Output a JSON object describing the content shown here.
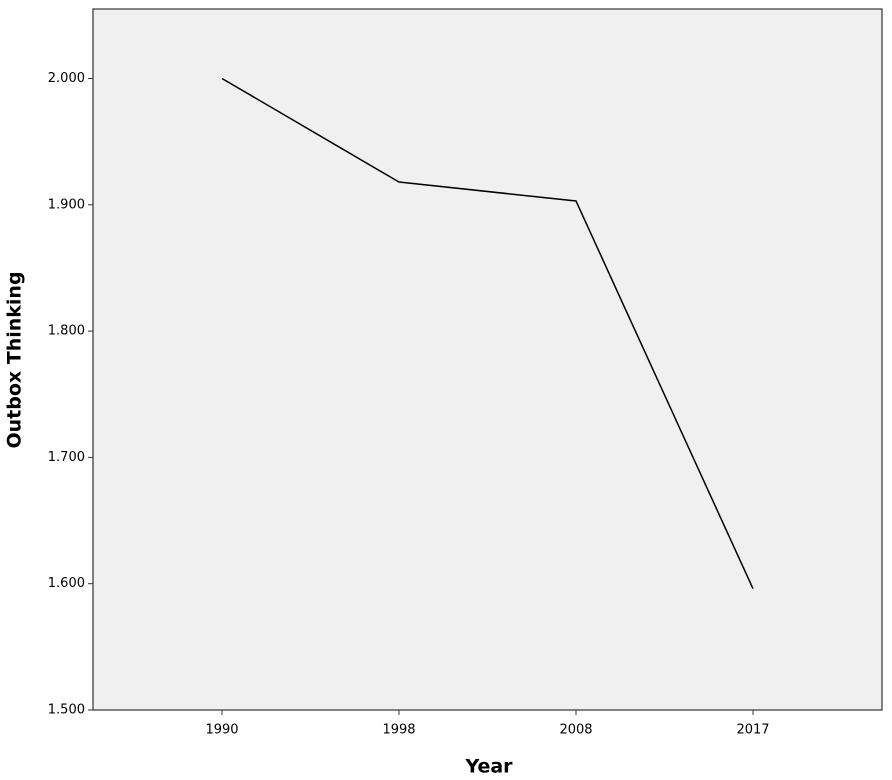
{
  "chart_data": {
    "type": "line",
    "x_label": "Year",
    "y_label": "Outbox Thinking",
    "categories": [
      "1990",
      "1998",
      "2008",
      "2017"
    ],
    "values": [
      2.0,
      1.918,
      1.903,
      1.596
    ],
    "color": "#000000",
    "ylim": [
      1.5,
      2.055
    ],
    "yticks": [
      {
        "value": 1.5,
        "label": "1.500"
      },
      {
        "value": 1.6,
        "label": "1.600"
      },
      {
        "value": 1.7,
        "label": "1.700"
      },
      {
        "value": 1.8,
        "label": "1.800"
      },
      {
        "value": 1.9,
        "label": "1.900"
      },
      {
        "value": 2.0,
        "label": "2.000"
      }
    ],
    "background": "#f0f0f0"
  }
}
